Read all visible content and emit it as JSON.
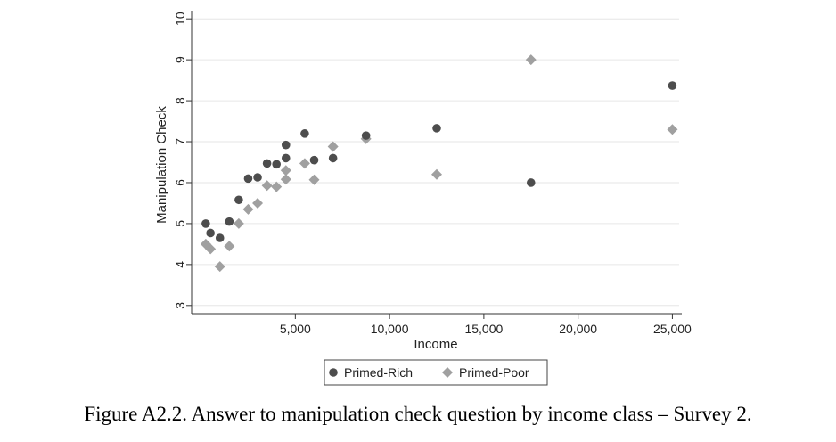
{
  "caption": "Figure A2.2. Answer to manipulation check question by income class – Survey 2.",
  "chart_data": {
    "type": "scatter",
    "xlabel": "Income",
    "ylabel": "Manipulation Check",
    "xlim": [
      -500,
      25500
    ],
    "ylim": [
      2.8,
      10.2
    ],
    "x_ticks": [
      5000,
      10000,
      15000,
      20000,
      25000
    ],
    "x_tick_labels": [
      "5,000",
      "10,000",
      "15,000",
      "20,000",
      "25,000"
    ],
    "y_ticks": [
      3,
      4,
      5,
      6,
      7,
      8,
      9,
      10
    ],
    "y_tick_labels": [
      "3",
      "4",
      "5",
      "6",
      "7",
      "8",
      "9",
      "10"
    ],
    "grid": "horizontal",
    "legend_position": "bottom",
    "colors": {
      "rich": "#4d4d4d",
      "poor": "#a0a0a0",
      "grid": "#e6e6e6"
    },
    "series": [
      {
        "name": "Primed-Rich",
        "marker": "circle",
        "points": [
          [
            250,
            5.0
          ],
          [
            500,
            4.77
          ],
          [
            1000,
            4.65
          ],
          [
            1500,
            5.05
          ],
          [
            2000,
            5.58
          ],
          [
            2500,
            6.1
          ],
          [
            3000,
            6.13
          ],
          [
            3500,
            6.47
          ],
          [
            4000,
            6.45
          ],
          [
            4500,
            6.6
          ],
          [
            4500,
            6.92
          ],
          [
            5500,
            7.2
          ],
          [
            6000,
            6.55
          ],
          [
            7000,
            6.6
          ],
          [
            8750,
            7.15
          ],
          [
            12500,
            7.33
          ],
          [
            17500,
            6.0
          ],
          [
            25000,
            8.37
          ]
        ]
      },
      {
        "name": "Primed-Poor",
        "marker": "diamond",
        "points": [
          [
            250,
            4.5
          ],
          [
            500,
            4.38
          ],
          [
            1000,
            3.95
          ],
          [
            1500,
            4.45
          ],
          [
            2000,
            5.0
          ],
          [
            2500,
            5.35
          ],
          [
            3000,
            5.5
          ],
          [
            3500,
            5.93
          ],
          [
            4000,
            5.9
          ],
          [
            4500,
            6.08
          ],
          [
            4500,
            6.3
          ],
          [
            5500,
            6.47
          ],
          [
            6000,
            6.07
          ],
          [
            7000,
            6.88
          ],
          [
            8750,
            7.07
          ],
          [
            12500,
            6.2
          ],
          [
            17500,
            9.0
          ],
          [
            25000,
            7.3
          ]
        ]
      }
    ]
  }
}
